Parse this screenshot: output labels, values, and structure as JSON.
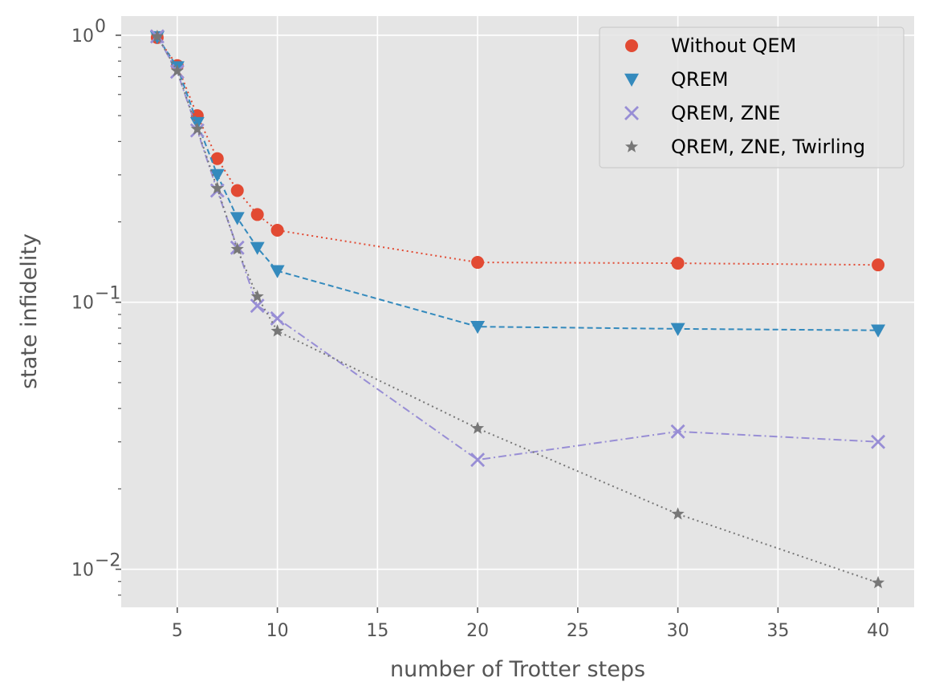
{
  "chart_data": {
    "type": "line",
    "title": "",
    "xlabel": "number of Trotter steps",
    "ylabel": "state infidelity",
    "x": [
      4,
      5,
      6,
      7,
      8,
      9,
      10,
      20,
      30,
      40
    ],
    "xlim": [
      2.2,
      41.8
    ],
    "ylim": [
      0.0072,
      1.18
    ],
    "yscale": "log",
    "xticks": [
      5,
      10,
      15,
      20,
      25,
      30,
      35,
      40
    ],
    "xtick_labels": [
      "5",
      "10",
      "15",
      "20",
      "25",
      "30",
      "35",
      "40"
    ],
    "yticks": [
      1,
      0.1,
      0.01
    ],
    "ytick_labels": [
      {
        "base": "10",
        "exp": "0"
      },
      {
        "base": "10",
        "exp": "−1"
      },
      {
        "base": "10",
        "exp": "−2"
      }
    ],
    "grid": true,
    "legend": "top-right",
    "series": [
      {
        "name": "Without QEM",
        "marker": "circle",
        "line": "dotted",
        "color": "#E24A33",
        "values": [
          0.98,
          0.77,
          0.5,
          0.345,
          0.262,
          0.213,
          0.186,
          0.141,
          0.14,
          0.138
        ]
      },
      {
        "name": "QREM",
        "marker": "triangle-down",
        "line": "dashed",
        "color": "#348ABD",
        "values": [
          0.985,
          0.76,
          0.47,
          0.3,
          0.207,
          0.16,
          0.131,
          0.081,
          0.0795,
          0.0785
        ]
      },
      {
        "name": "QREM, ZNE",
        "marker": "x",
        "line": "dashdot",
        "color": "#988ED5",
        "values": [
          0.99,
          0.73,
          0.44,
          0.262,
          0.16,
          0.097,
          0.087,
          0.0257,
          0.0328,
          0.03
        ]
      },
      {
        "name": "QREM, ZNE, Twirling",
        "marker": "star",
        "line": "dotted",
        "color": "#777777",
        "values": [
          0.99,
          0.735,
          0.445,
          0.267,
          0.158,
          0.105,
          0.078,
          0.0337,
          0.0161,
          0.0089
        ]
      }
    ]
  }
}
